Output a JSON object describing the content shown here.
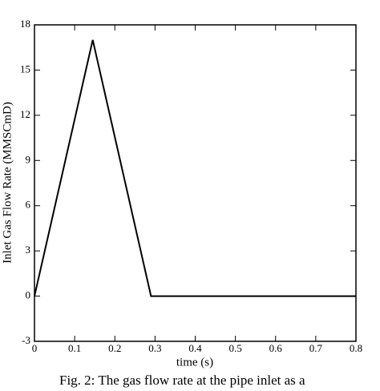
{
  "chart_data": {
    "type": "line",
    "xlabel": "time (s)",
    "ylabel": "Inlet Gas Flow Rate (MMSCmD)",
    "x": [
      0,
      0.145,
      0.29,
      0.8
    ],
    "values": [
      0,
      17,
      0,
      0
    ],
    "color": "#000000",
    "xlim": [
      0,
      0.8
    ],
    "xticks": [
      0,
      0.1,
      0.2,
      0.3,
      0.4,
      0.5,
      0.6,
      0.7,
      0.8
    ],
    "ylim": [
      -3,
      18
    ],
    "yticks": [
      -3,
      0,
      3,
      6,
      9,
      12,
      15,
      18
    ],
    "grid": false
  },
  "caption": "Fig. 2: The gas flow rate at the pipe inlet as a"
}
